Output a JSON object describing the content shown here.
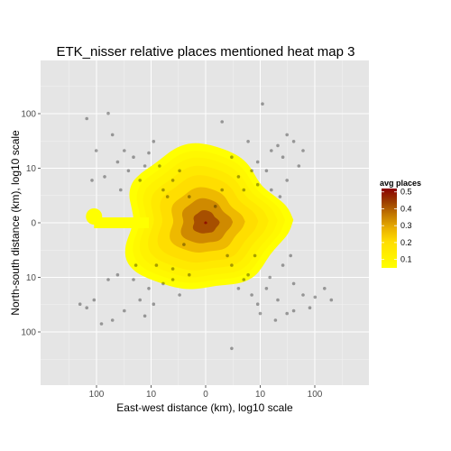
{
  "chart_data": {
    "type": "heatmap",
    "title": "ETK_nisser relative places mentioned heat map 3",
    "xlabel": "East-west distance (km), log10 scale",
    "ylabel": "North-south distance (km), log10 scale",
    "x_ticks": [
      "100",
      "10",
      "0",
      "10",
      "100"
    ],
    "y_ticks": [
      "100",
      "10",
      "0",
      "10",
      "100"
    ],
    "scale": "symmetric log10",
    "grid": true,
    "legend": {
      "title": "avg places",
      "position": "right",
      "labels": [
        "0.5",
        "0.4",
        "0.3",
        "0.2",
        "0.1"
      ],
      "range": [
        0.05,
        0.52
      ],
      "colors": [
        "#ffff00",
        "#ffee00",
        "#ffdd00",
        "#eab000",
        "#c47a00",
        "#9c3e00",
        "#8b0000"
      ]
    },
    "density_levels": [
      0.05,
      0.08,
      0.11,
      0.15,
      0.2,
      0.27,
      0.34,
      0.42,
      0.5
    ],
    "points": [
      [
        -5,
        3
      ],
      [
        -50,
        40
      ],
      [
        -150,
        80
      ],
      [
        -60,
        100
      ],
      [
        -30,
        20
      ],
      [
        -20,
        15
      ],
      [
        -10,
        18
      ],
      [
        -8,
        30
      ],
      [
        -3,
        5
      ],
      [
        -2,
        8
      ],
      [
        -4,
        2
      ],
      [
        -6,
        10
      ],
      [
        -15,
        5
      ],
      [
        -25,
        8
      ],
      [
        -40,
        12
      ],
      [
        -70,
        6
      ],
      [
        -100,
        20
      ],
      [
        -120,
        5
      ],
      [
        -200,
        -30
      ],
      [
        -150,
        -35
      ],
      [
        -110,
        -25
      ],
      [
        -60,
        -10
      ],
      [
        -40,
        -8
      ],
      [
        -20,
        -10
      ],
      [
        -10,
        -15
      ],
      [
        -8,
        -30
      ],
      [
        -5,
        -12
      ],
      [
        -3,
        -6
      ],
      [
        -2,
        -20
      ],
      [
        -1,
        -8
      ],
      [
        -30,
        -40
      ],
      [
        -50,
        -60
      ],
      [
        -12,
        -50
      ],
      [
        -80,
        -70
      ],
      [
        -15,
        -25
      ],
      [
        -7,
        -5
      ],
      [
        1,
        70
      ],
      [
        10,
        150
      ],
      [
        5,
        30
      ],
      [
        8,
        12
      ],
      [
        3,
        6
      ],
      [
        2,
        15
      ],
      [
        15,
        20
      ],
      [
        12,
        8
      ],
      [
        25,
        15
      ],
      [
        30,
        40
      ],
      [
        40,
        30
      ],
      [
        20,
        25
      ],
      [
        8,
        4
      ],
      [
        4,
        3
      ],
      [
        50,
        10
      ],
      [
        60,
        20
      ],
      [
        30,
        5
      ],
      [
        15,
        3
      ],
      [
        2,
        -5
      ],
      [
        4,
        -10
      ],
      [
        6,
        -20
      ],
      [
        8,
        -30
      ],
      [
        12,
        -15
      ],
      [
        20,
        -25
      ],
      [
        30,
        -45
      ],
      [
        40,
        -12
      ],
      [
        60,
        -20
      ],
      [
        80,
        -35
      ],
      [
        100,
        -22
      ],
      [
        200,
        -25
      ],
      [
        150,
        -15
      ],
      [
        18,
        -60
      ],
      [
        9,
        -45
      ],
      [
        3,
        -15
      ],
      [
        2,
        -200
      ],
      [
        5,
        -8
      ],
      [
        7,
        -3
      ],
      [
        1.5,
        -3
      ],
      [
        25,
        -5
      ],
      [
        40,
        -40
      ],
      [
        1,
        3
      ],
      [
        -1,
        2
      ],
      [
        -1.5,
        -1.5
      ],
      [
        0.5,
        1
      ],
      [
        -3,
        -10
      ],
      [
        6,
        8
      ],
      [
        -12,
        10
      ],
      [
        14,
        -9
      ],
      [
        -18,
        -5
      ],
      [
        22,
        2
      ],
      [
        -35,
        3
      ],
      [
        35,
        -3
      ]
    ]
  }
}
